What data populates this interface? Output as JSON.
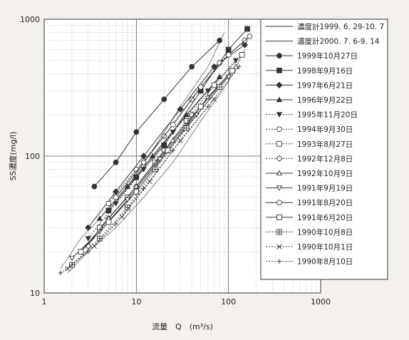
{
  "chart_data": {
    "type": "line",
    "title": "",
    "xlabel": "流量　Q　(m³/s)",
    "ylabel": "SS濃度(mg/l)",
    "x_scale": "log",
    "y_scale": "log",
    "xlim": [
      1,
      1000
    ],
    "ylim": [
      10,
      1000
    ],
    "x_ticks": [
      "1",
      "10",
      "100",
      "1000"
    ],
    "y_ticks": [
      "10",
      "100",
      "1000"
    ],
    "grid": true,
    "legend_position": "right",
    "series": [
      {
        "name": "濃度計1999. 6. 29-10. 7",
        "marker": "none",
        "dash": "solid",
        "x": [
          1.5,
          2.5,
          4,
          8,
          15,
          30,
          60,
          90
        ],
        "y": [
          15,
          25,
          35,
          60,
          110,
          230,
          450,
          800
        ]
      },
      {
        "name": "濃度計2000. 7. 6-9. 14",
        "marker": "none",
        "dash": "solid",
        "x": [
          1.8,
          3,
          6,
          12,
          25,
          50,
          100,
          150
        ],
        "y": [
          14,
          20,
          30,
          50,
          90,
          180,
          350,
          600
        ]
      },
      {
        "name": "1999年10月27日",
        "marker": "circle-filled",
        "dash": "solid",
        "x": [
          3.5,
          6,
          10,
          20,
          40,
          80
        ],
        "y": [
          60,
          90,
          150,
          260,
          450,
          700
        ]
      },
      {
        "name": "1998年9月16日",
        "marker": "square-filled",
        "dash": "solid",
        "x": [
          5,
          10,
          20,
          50,
          100,
          160
        ],
        "y": [
          40,
          70,
          120,
          300,
          600,
          850
        ]
      },
      {
        "name": "1997年6月21日",
        "marker": "diamond-filled",
        "dash": "solid",
        "x": [
          3,
          6,
          12,
          30,
          70,
          150
        ],
        "y": [
          30,
          55,
          100,
          220,
          450,
          650
        ]
      },
      {
        "name": "1996年9月22日",
        "marker": "triangle-filled",
        "dash": "solid",
        "x": [
          4,
          8,
          15,
          35,
          80
        ],
        "y": [
          35,
          60,
          100,
          200,
          380
        ]
      },
      {
        "name": "1995年11月20日",
        "marker": "triangle-down-filled",
        "dash": "dotted",
        "x": [
          3,
          6,
          12,
          25,
          60,
          120
        ],
        "y": [
          25,
          45,
          80,
          150,
          300,
          500
        ]
      },
      {
        "name": "1994年9月30日",
        "marker": "circle-open",
        "dash": "dotted",
        "x": [
          5,
          10,
          20,
          40,
          80,
          150
        ],
        "y": [
          45,
          80,
          140,
          260,
          480,
          700
        ]
      },
      {
        "name": "1993年8月27日",
        "marker": "square-open",
        "dash": "dotted",
        "x": [
          4,
          8,
          16,
          35,
          70,
          140
        ],
        "y": [
          30,
          50,
          90,
          180,
          330,
          550
        ]
      },
      {
        "name": "1992年12月8日",
        "marker": "diamond-open",
        "dash": "dotted",
        "x": [
          3,
          5,
          10,
          20,
          40
        ],
        "y": [
          22,
          35,
          60,
          110,
          200
        ]
      },
      {
        "name": "1992年10月9日",
        "marker": "triangle-open",
        "dash": "solid",
        "x": [
          2.5,
          5,
          10,
          25,
          60,
          120
        ],
        "y": [
          20,
          35,
          60,
          130,
          270,
          450
        ]
      },
      {
        "name": "1991年9月19日",
        "marker": "triangle-down-open",
        "dash": "solid",
        "x": [
          2,
          4,
          8,
          18,
          45,
          100
        ],
        "y": [
          18,
          28,
          48,
          95,
          200,
          380
        ]
      },
      {
        "name": "1991年8月20日",
        "marker": "circle-open",
        "dash": "solid",
        "x": [
          6,
          12,
          25,
          50,
          100,
          170
        ],
        "y": [
          50,
          90,
          170,
          320,
          550,
          750
        ]
      },
      {
        "name": "1991年6月20日",
        "marker": "square-open",
        "dash": "solid",
        "x": [
          2.5,
          5,
          10,
          22,
          50,
          110
        ],
        "y": [
          20,
          33,
          55,
          110,
          230,
          420
        ]
      },
      {
        "name": "1990年10月8日",
        "marker": "square-open-cross",
        "dash": "dotted",
        "x": [
          2,
          4,
          8,
          16,
          35,
          80
        ],
        "y": [
          16,
          25,
          42,
          80,
          160,
          320
        ]
      },
      {
        "name": "1990年10月1日",
        "marker": "x",
        "dash": "dotted",
        "x": [
          1.8,
          3.5,
          7,
          14,
          30,
          70
        ],
        "y": [
          15,
          22,
          36,
          65,
          130,
          260
        ]
      },
      {
        "name": "1990年8月10日",
        "marker": "plus",
        "dash": "dotted",
        "x": [
          1.5,
          3,
          6,
          12,
          25,
          60,
          130
        ],
        "y": [
          14,
          20,
          32,
          58,
          110,
          230,
          450
        ]
      }
    ]
  }
}
